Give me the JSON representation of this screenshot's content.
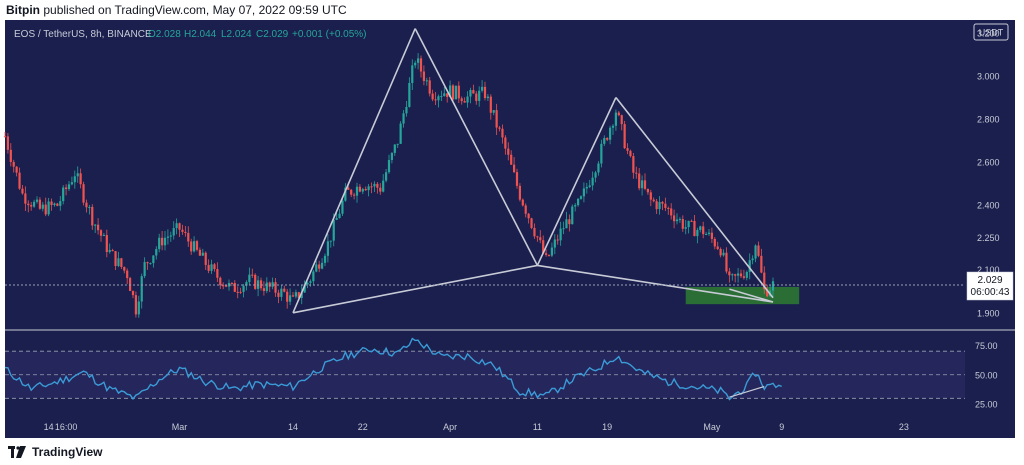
{
  "header": {
    "publisher": "Bitpin",
    "published_text": "published on TradingView.com, May 07, 2022 09:59 UTC"
  },
  "footer": {
    "brand": "TradingView"
  },
  "colors": {
    "background": "#1a1f4e",
    "up": "#26a69a",
    "down": "#ef5350",
    "pattern": "#c8cbd6",
    "rsi": "#3a9bd6",
    "zone": "#2e7d32"
  },
  "chart_data": [
    {
      "type": "candlestick",
      "symbol_info": "EOS / TetherUS, 8h, BINANCE",
      "ohlc": {
        "open": "O2.028",
        "high": "H2.044",
        "low": "L2.024",
        "close": "C2.029",
        "change": "+0.001 (+0.05%)"
      },
      "currency": "USDT",
      "y_ticks": [
        "3.200",
        "3.000",
        "2.800",
        "2.600",
        "2.400",
        "2.250",
        "2.100",
        "1.900"
      ],
      "last_price": "2.029",
      "countdown": "06:00:43",
      "x_ticks": [
        "14",
        "16:00",
        "Mar",
        "14",
        "22",
        "Apr",
        "11",
        "19",
        "May",
        "9",
        "23"
      ],
      "x_range": [
        "2022-02-09",
        "2022-05-30"
      ],
      "price_path": [
        [
          "2022-02-09",
          2.72
        ],
        [
          "2022-02-11",
          2.45
        ],
        [
          "2022-02-13",
          2.38
        ],
        [
          "2022-02-15",
          2.4
        ],
        [
          "2022-02-17",
          2.55
        ],
        [
          "2022-02-19",
          2.34
        ],
        [
          "2022-02-21",
          2.18
        ],
        [
          "2022-02-23",
          2.08
        ],
        [
          "2022-02-24",
          1.92
        ],
        [
          "2022-02-25",
          2.12
        ],
        [
          "2022-02-27",
          2.24
        ],
        [
          "2022-03-01",
          2.29
        ],
        [
          "2022-03-03",
          2.18
        ],
        [
          "2022-03-05",
          2.08
        ],
        [
          "2022-03-07",
          2.01
        ],
        [
          "2022-03-09",
          2.05
        ],
        [
          "2022-03-11",
          2.02
        ],
        [
          "2022-03-13",
          1.99
        ],
        [
          "2022-03-14",
          1.95
        ],
        [
          "2022-03-16",
          2.06
        ],
        [
          "2022-03-18",
          2.22
        ],
        [
          "2022-03-20",
          2.45
        ],
        [
          "2022-03-22",
          2.5
        ],
        [
          "2022-03-24",
          2.48
        ],
        [
          "2022-03-26",
          2.7
        ],
        [
          "2022-03-28",
          3.08
        ],
        [
          "2022-03-30",
          2.92
        ],
        [
          "2022-04-01",
          2.93
        ],
        [
          "2022-04-03",
          2.9
        ],
        [
          "2022-04-05",
          2.92
        ],
        [
          "2022-04-07",
          2.7
        ],
        [
          "2022-04-09",
          2.45
        ],
        [
          "2022-04-11",
          2.25
        ],
        [
          "2022-04-12",
          2.14
        ],
        [
          "2022-04-14",
          2.3
        ],
        [
          "2022-04-16",
          2.42
        ],
        [
          "2022-04-18",
          2.62
        ],
        [
          "2022-04-20",
          2.84
        ],
        [
          "2022-04-22",
          2.55
        ],
        [
          "2022-04-24",
          2.42
        ],
        [
          "2022-04-26",
          2.38
        ],
        [
          "2022-04-28",
          2.3
        ],
        [
          "2022-04-30",
          2.28
        ],
        [
          "2022-05-02",
          2.2
        ],
        [
          "2022-05-03",
          2.04
        ],
        [
          "2022-05-05",
          2.1
        ],
        [
          "2022-05-06",
          2.23
        ],
        [
          "2022-05-07",
          2.0
        ],
        [
          "2022-05-08",
          2.03
        ]
      ],
      "pattern_lines": [
        [
          [
            "2022-03-14",
            1.9
          ],
          [
            "2022-03-28",
            3.22
          ]
        ],
        [
          [
            "2022-03-28",
            3.22
          ],
          [
            "2022-04-11",
            2.12
          ]
        ],
        [
          [
            "2022-03-14",
            1.9
          ],
          [
            "2022-04-11",
            2.12
          ]
        ],
        [
          [
            "2022-04-11",
            2.12
          ],
          [
            "2022-04-20",
            2.9
          ]
        ],
        [
          [
            "2022-04-20",
            2.9
          ],
          [
            "2022-05-08",
            1.97
          ]
        ],
        [
          [
            "2022-04-11",
            2.12
          ],
          [
            "2022-05-08",
            1.95
          ]
        ],
        [
          [
            "2022-05-03",
            2.01
          ],
          [
            "2022-05-08",
            1.95
          ]
        ]
      ],
      "zone": {
        "x_start": "2022-04-28",
        "x_end": "2022-05-11",
        "y_low": 1.94,
        "y_high": 2.02
      }
    },
    {
      "type": "line",
      "indicator": "RSI",
      "y_ticks": [
        "75.00",
        "50.00",
        "25.00"
      ],
      "bands": [
        30,
        50,
        70
      ],
      "rsi_path": [
        [
          "2022-02-09",
          55
        ],
        [
          "2022-02-12",
          38
        ],
        [
          "2022-02-15",
          44
        ],
        [
          "2022-02-18",
          52
        ],
        [
          "2022-02-21",
          38
        ],
        [
          "2022-02-24",
          30
        ],
        [
          "2022-02-27",
          48
        ],
        [
          "2022-03-01",
          55
        ],
        [
          "2022-03-04",
          44
        ],
        [
          "2022-03-07",
          38
        ],
        [
          "2022-03-10",
          42
        ],
        [
          "2022-03-14",
          40
        ],
        [
          "2022-03-17",
          55
        ],
        [
          "2022-03-20",
          66
        ],
        [
          "2022-03-23",
          72
        ],
        [
          "2022-03-26",
          68
        ],
        [
          "2022-03-28",
          80
        ],
        [
          "2022-03-31",
          65
        ],
        [
          "2022-04-03",
          66
        ],
        [
          "2022-04-06",
          58
        ],
        [
          "2022-04-09",
          36
        ],
        [
          "2022-04-12",
          32
        ],
        [
          "2022-04-15",
          46
        ],
        [
          "2022-04-18",
          56
        ],
        [
          "2022-04-20",
          66
        ],
        [
          "2022-04-23",
          52
        ],
        [
          "2022-04-26",
          44
        ],
        [
          "2022-04-29",
          40
        ],
        [
          "2022-05-02",
          36
        ],
        [
          "2022-05-03",
          30
        ],
        [
          "2022-05-05",
          40
        ],
        [
          "2022-05-06",
          52
        ],
        [
          "2022-05-07",
          40
        ],
        [
          "2022-05-09",
          42
        ]
      ],
      "trend_line": [
        [
          "2022-05-03",
          31
        ],
        [
          "2022-05-07",
          40
        ]
      ]
    }
  ]
}
